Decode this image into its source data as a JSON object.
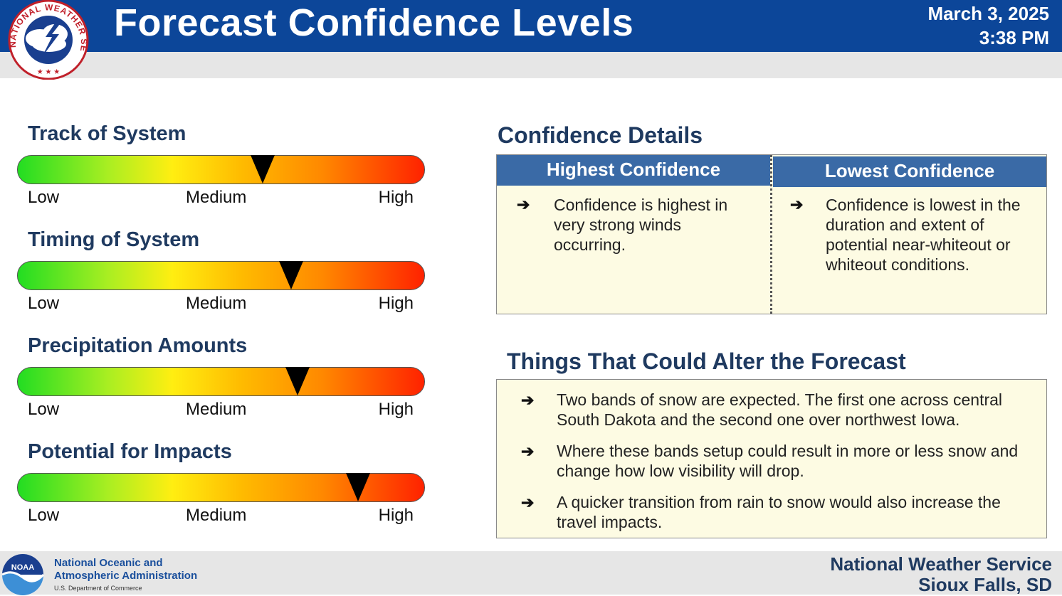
{
  "header": {
    "title": "Forecast Confidence Levels",
    "date": "March 3, 2025",
    "time": "3:38 PM",
    "logo_text": "NATIONAL WEATHER SERVICE"
  },
  "gauges": [
    {
      "title": "Track of System",
      "low": "Low",
      "medium": "Medium",
      "high": "High",
      "level": 0.6
    },
    {
      "title": "Timing of System",
      "low": "Low",
      "medium": "Medium",
      "high": "High",
      "level": 0.67
    },
    {
      "title": "Precipitation Amounts",
      "low": "Low",
      "medium": "Medium",
      "high": "High",
      "level": 0.685
    },
    {
      "title": "Potential for Impacts",
      "low": "Low",
      "medium": "Medium",
      "high": "High",
      "level": 0.835
    }
  ],
  "confidence": {
    "title": "Confidence Details",
    "highest_header": "Highest Confidence",
    "lowest_header": "Lowest Confidence",
    "highest_items": [
      "Confidence is highest in very strong winds occurring."
    ],
    "lowest_items": [
      "Confidence is lowest in the duration and extent of potential near-whiteout or whiteout conditions."
    ]
  },
  "alter": {
    "title": "Things That Could Alter the Forecast",
    "items": [
      "Two bands of snow are expected. The first one across central South Dakota and the second one over northwest Iowa.",
      "Where these bands setup could result in more or less snow and change how low visibility will drop.",
      "A quicker transition from rain to snow would also increase the travel impacts."
    ]
  },
  "footer": {
    "noaa_line1": "National Oceanic and",
    "noaa_line2": "Atmospheric Administration",
    "noaa_dept": "U.S. Department of Commerce",
    "noaa_logo_text": "NOAA",
    "office_line1": "National Weather Service",
    "office_line2": "Sioux Falls, SD"
  },
  "colors": {
    "header_blue": "#0c4699",
    "title_navy": "#1f3a60",
    "table_header": "#3a6aa6",
    "box_fill": "#fdfbe3"
  }
}
